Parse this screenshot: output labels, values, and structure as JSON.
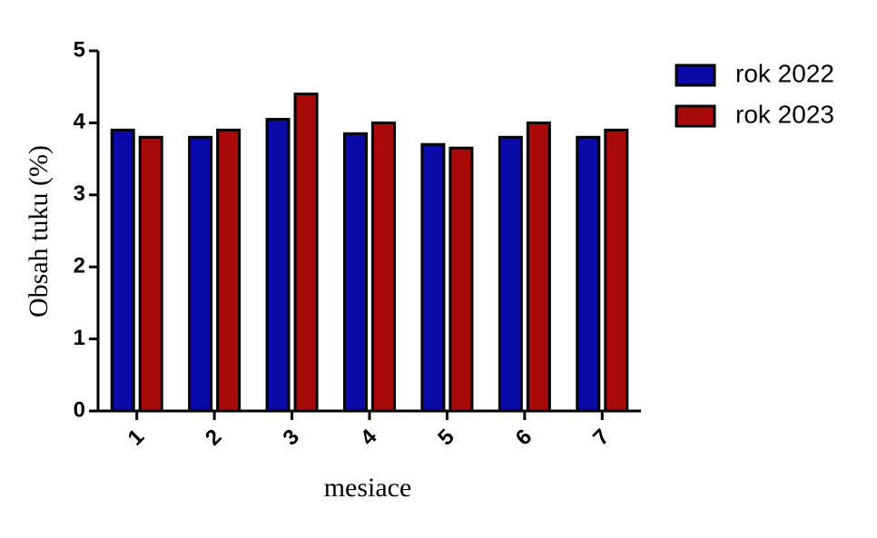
{
  "chart_data": {
    "type": "bar",
    "x_label": "mesiace",
    "y_label": "Obsah tuku (%)",
    "categories": [
      "1",
      "2",
      "3",
      "4",
      "5",
      "6",
      "7"
    ],
    "series": [
      {
        "name": "rok 2022",
        "color": "#0a0aa8",
        "values": [
          3.9,
          3.8,
          4.05,
          3.85,
          3.7,
          3.8,
          3.8
        ]
      },
      {
        "name": "rok 2023",
        "color": "#a80a0a",
        "values": [
          3.8,
          3.9,
          4.4,
          4.0,
          3.65,
          4.0,
          3.9
        ]
      }
    ],
    "ylim": [
      0,
      5
    ],
    "yticks": [
      0,
      1,
      2,
      3,
      4,
      5
    ],
    "legend": "right"
  }
}
